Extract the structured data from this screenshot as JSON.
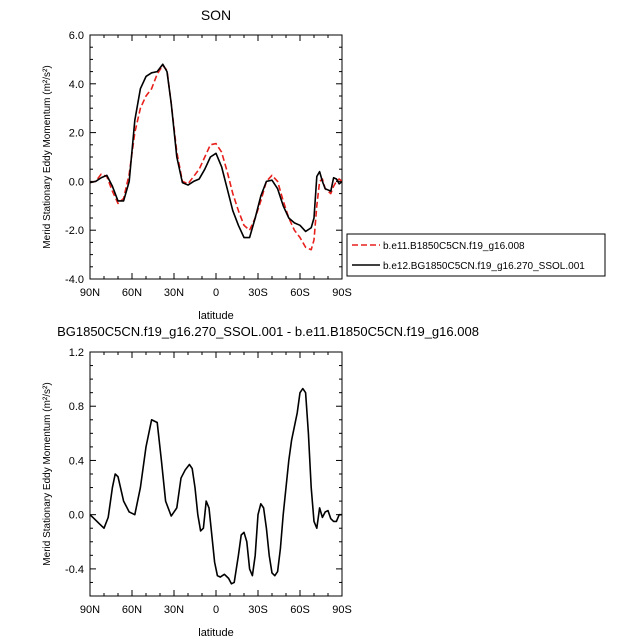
{
  "chart_data": [
    {
      "type": "line",
      "title": "SON",
      "xlabel": "latitude",
      "ylabel": "Merid Stationary Eddy Momentum (m²/s²)",
      "xlim": [
        -90,
        90
      ],
      "ylim": [
        -4.0,
        6.0
      ],
      "xticks": [
        -90,
        -60,
        -30,
        0,
        30,
        60,
        90
      ],
      "xtick_labels": [
        "90N",
        "60N",
        "30N",
        "0",
        "30S",
        "60S",
        "90S"
      ],
      "yticks": [
        -4,
        -2,
        0,
        2,
        4,
        6
      ],
      "ytick_labels": [
        "-4.0",
        "-2.0",
        "0.0",
        "2.0",
        "4.0",
        "6.0"
      ],
      "legend_position": "outside-right",
      "series": [
        {
          "name": "b.e11.B1850C5CN.f19_g16.008",
          "color": "#e8201c",
          "dash": "dashed",
          "x": [
            -90,
            -86,
            -82,
            -78,
            -74,
            -70,
            -66,
            -62,
            -58,
            -54,
            -50,
            -46,
            -42,
            -38,
            -35,
            -32,
            -28,
            -24,
            -20,
            -16,
            -12,
            -8,
            -4,
            0,
            4,
            8,
            12,
            16,
            20,
            24,
            28,
            32,
            36,
            40,
            44,
            48,
            52,
            56,
            60,
            64,
            68,
            70,
            72,
            74,
            76,
            78,
            80,
            82,
            84,
            86,
            88,
            90
          ],
          "y": [
            -0.05,
            0.0,
            0.3,
            0.2,
            -0.4,
            -0.9,
            -0.7,
            0.3,
            2.0,
            3.0,
            3.5,
            3.8,
            4.4,
            4.75,
            4.55,
            3.2,
            1.2,
            0.0,
            -0.1,
            0.2,
            0.5,
            1.0,
            1.5,
            1.55,
            1.2,
            0.4,
            -0.5,
            -1.2,
            -1.8,
            -2.0,
            -1.5,
            -0.8,
            0.0,
            0.25,
            0.0,
            -0.8,
            -1.5,
            -2.0,
            -2.3,
            -2.7,
            -2.8,
            -2.4,
            -1.0,
            0.0,
            0.1,
            -0.3,
            -0.4,
            -0.5,
            -0.2,
            0.0,
            0.1,
            0.0
          ]
        },
        {
          "name": "b.e12.BG1850C5CN.f19_g16.270_SSOL.001",
          "color": "#000000",
          "dash": "solid",
          "x": [
            -90,
            -86,
            -82,
            -78,
            -74,
            -70,
            -66,
            -62,
            -58,
            -54,
            -50,
            -46,
            -42,
            -38,
            -35,
            -32,
            -28,
            -24,
            -20,
            -16,
            -12,
            -8,
            -4,
            0,
            4,
            8,
            12,
            16,
            20,
            24,
            28,
            32,
            36,
            40,
            44,
            48,
            52,
            56,
            60,
            64,
            68,
            70,
            72,
            74,
            76,
            78,
            80,
            82,
            84,
            86,
            88,
            90
          ],
          "y": [
            -0.05,
            0.0,
            0.15,
            0.25,
            -0.2,
            -0.8,
            -0.8,
            0.0,
            2.5,
            3.8,
            4.3,
            4.45,
            4.5,
            4.8,
            4.5,
            3.2,
            1.0,
            -0.05,
            -0.15,
            0.0,
            0.1,
            0.5,
            1.0,
            1.15,
            0.6,
            -0.3,
            -1.2,
            -1.8,
            -2.3,
            -2.3,
            -1.5,
            -0.6,
            0.0,
            0.05,
            -0.3,
            -1.0,
            -1.5,
            -1.7,
            -1.8,
            -2.05,
            -1.9,
            -1.5,
            0.2,
            0.4,
            0.0,
            -0.3,
            -0.35,
            -0.4,
            0.15,
            0.1,
            -0.1,
            0.0
          ]
        }
      ]
    },
    {
      "type": "line",
      "title": "BG1850C5CN.f19_g16.270_SSOL.001 - b.e11.B1850C5CN.f19_g16.008",
      "xlabel": "latitude",
      "ylabel": "Merid Stationary Eddy Momentum (m²/s²)",
      "xlim": [
        -90,
        90
      ],
      "ylim": [
        -0.6,
        1.2
      ],
      "xticks": [
        -90,
        -60,
        -30,
        0,
        30,
        60,
        90
      ],
      "xtick_labels": [
        "90N",
        "60N",
        "30N",
        "0",
        "30S",
        "60S",
        "90S"
      ],
      "yticks": [
        -0.4,
        0.0,
        0.4,
        0.8,
        1.2
      ],
      "ytick_labels": [
        "-0.4",
        "0.0",
        "0.4",
        "0.8",
        "1.2"
      ],
      "series": [
        {
          "color": "#000000",
          "dash": "solid",
          "x": [
            -90,
            -87,
            -83,
            -80,
            -77,
            -74,
            -72,
            -70,
            -66,
            -62,
            -58,
            -54,
            -50,
            -46,
            -42,
            -39,
            -36,
            -32,
            -28,
            -25,
            -22,
            -19,
            -17,
            -15,
            -13,
            -11,
            -9,
            -7,
            -5,
            -3,
            -1,
            1,
            3,
            6,
            9,
            11,
            13,
            16,
            18,
            20,
            22,
            24,
            26,
            28,
            30,
            32,
            34,
            36,
            38,
            40,
            42,
            44,
            46,
            48,
            50,
            52,
            54,
            56,
            58,
            60,
            62,
            64,
            66,
            68,
            70,
            72,
            74,
            76,
            78,
            80,
            82,
            84,
            86,
            88,
            90
          ],
          "y": [
            0.0,
            -0.03,
            -0.07,
            -0.1,
            -0.02,
            0.2,
            0.3,
            0.28,
            0.1,
            0.02,
            0.0,
            0.2,
            0.5,
            0.7,
            0.68,
            0.4,
            0.1,
            -0.01,
            0.05,
            0.27,
            0.33,
            0.37,
            0.34,
            0.2,
            0.0,
            -0.12,
            -0.1,
            0.1,
            0.05,
            -0.15,
            -0.35,
            -0.45,
            -0.46,
            -0.44,
            -0.47,
            -0.51,
            -0.5,
            -0.3,
            -0.15,
            -0.13,
            -0.2,
            -0.4,
            -0.45,
            -0.3,
            0.0,
            0.08,
            0.05,
            -0.1,
            -0.3,
            -0.43,
            -0.45,
            -0.42,
            -0.25,
            0.0,
            0.2,
            0.4,
            0.55,
            0.65,
            0.75,
            0.9,
            0.93,
            0.9,
            0.6,
            0.2,
            -0.05,
            -0.1,
            0.05,
            -0.02,
            0.02,
            0.03,
            -0.03,
            -0.05,
            -0.05,
            0.0,
            0.0
          ]
        }
      ]
    }
  ]
}
